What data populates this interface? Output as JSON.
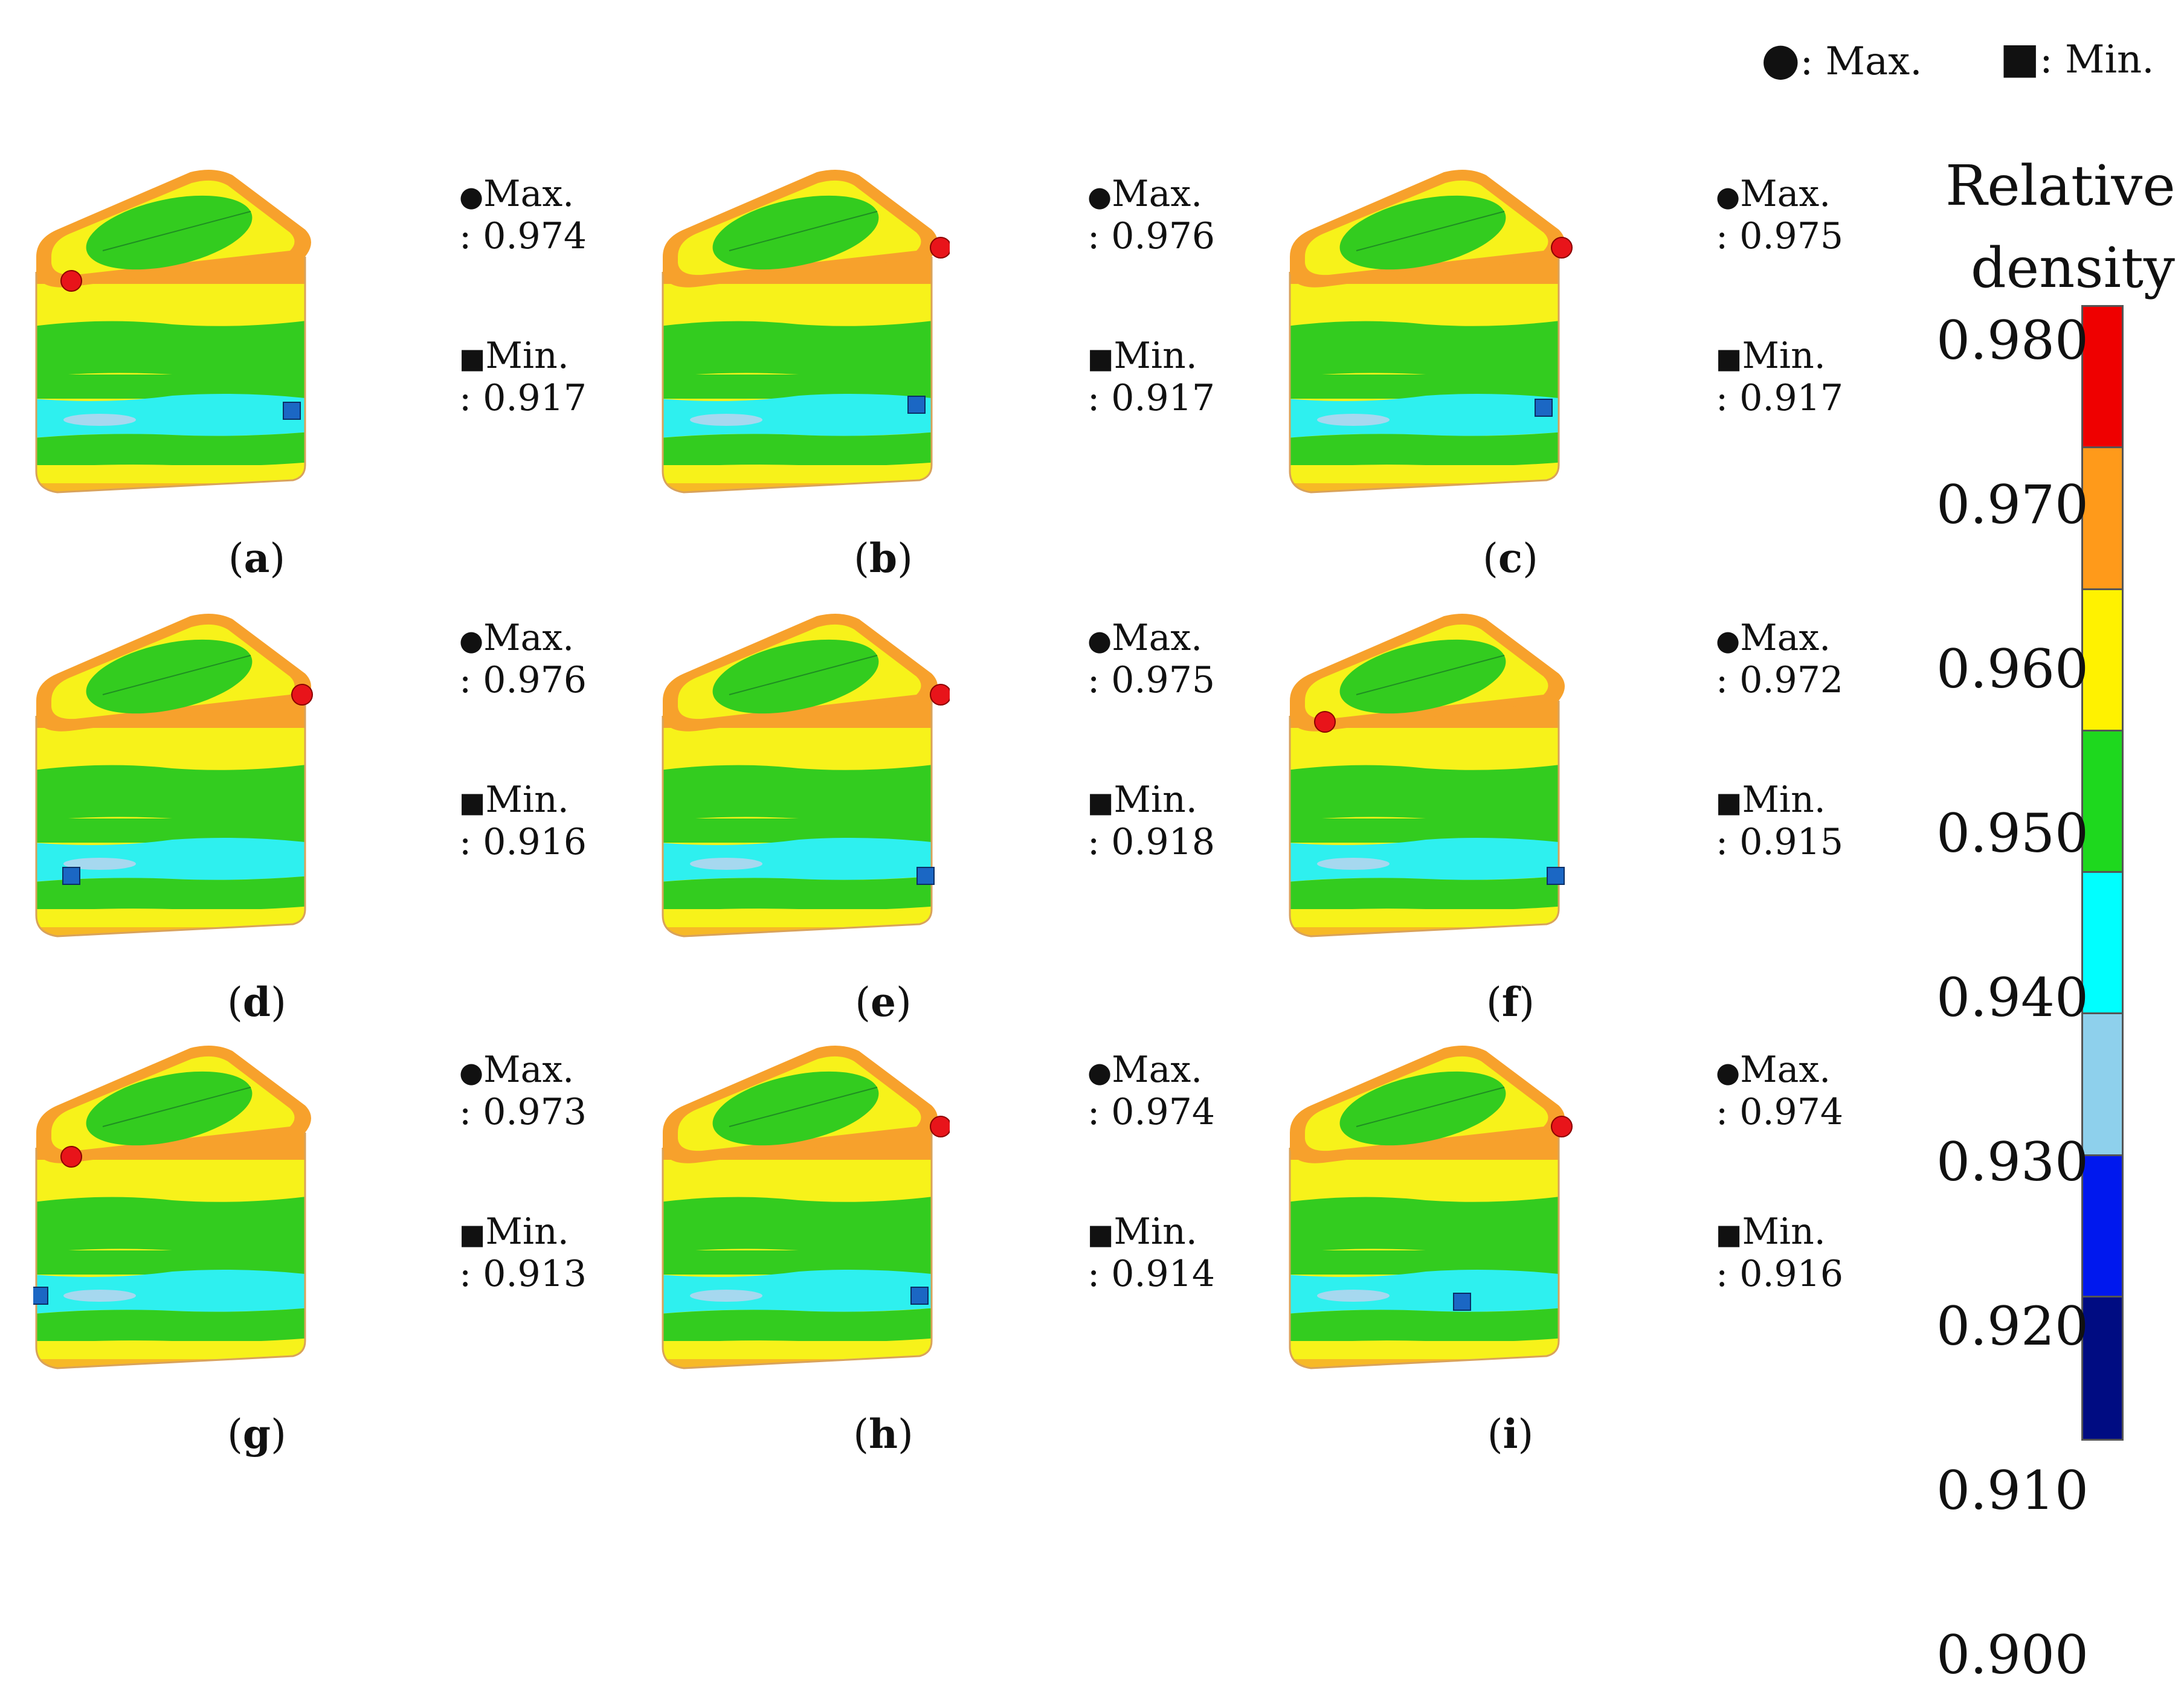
{
  "legend": {
    "max_symbol": "●",
    "max_label": ": Max.",
    "min_symbol": "■",
    "min_label": ": Min."
  },
  "colorbar": {
    "title_line1": "Relative",
    "title_line2": "density",
    "ticks": [
      "0.980",
      "0.970",
      "0.960",
      "0.950",
      "0.940",
      "0.930",
      "0.920",
      "0.910",
      "0.900"
    ],
    "bands_top_to_bottom": [
      "#ef0000",
      "#ff9a1a",
      "#fff200",
      "#1ed81e",
      "#00ffff",
      "#8ed0ec",
      "#0018ee",
      "#000c82"
    ]
  },
  "colors": {
    "orange": "#f7a12c",
    "yellow": "#f7f21a",
    "green": "#33cc1f",
    "dark_green": "#22b823",
    "cyan": "#2ef0ef",
    "light_blue": "#a6d8ef",
    "max_marker": "#e8141a",
    "min_marker": "#1b67c4"
  },
  "panels": [
    {
      "id": "a",
      "caption": "a",
      "max_label": "Max.",
      "max_value": ": 0.974",
      "min_label": "Min.",
      "min_value": ": 0.917"
    },
    {
      "id": "b",
      "caption": "b",
      "max_label": "Max.",
      "max_value": ": 0.976",
      "min_label": "Min.",
      "min_value": ": 0.917"
    },
    {
      "id": "c",
      "caption": "c",
      "max_label": "Max.",
      "max_value": ": 0.975",
      "min_label": "Min.",
      "min_value": ": 0.917"
    },
    {
      "id": "d",
      "caption": "d",
      "max_label": "Max.",
      "max_value": ": 0.976",
      "min_label": "Min.",
      "min_value": ": 0.916"
    },
    {
      "id": "e",
      "caption": "e",
      "max_label": "Max.",
      "max_value": ": 0.975",
      "min_label": "Min.",
      "min_value": ": 0.918"
    },
    {
      "id": "f",
      "caption": "f",
      "max_label": "Max.",
      "max_value": ": 0.972",
      "min_label": "Min.",
      "min_value": ": 0.915"
    },
    {
      "id": "g",
      "caption": "g",
      "max_label": "Max.",
      "max_value": ": 0.973",
      "min_label": "Min.",
      "min_value": ": 0.913"
    },
    {
      "id": "h",
      "caption": "h",
      "max_label": "Max.",
      "max_value": ": 0.974",
      "min_label": "Min.",
      "min_value": ": 0.914"
    },
    {
      "id": "i",
      "caption": "i",
      "max_label": "Max.",
      "max_value": ": 0.974",
      "min_label": "Min.",
      "min_value": ": 0.916"
    }
  ]
}
